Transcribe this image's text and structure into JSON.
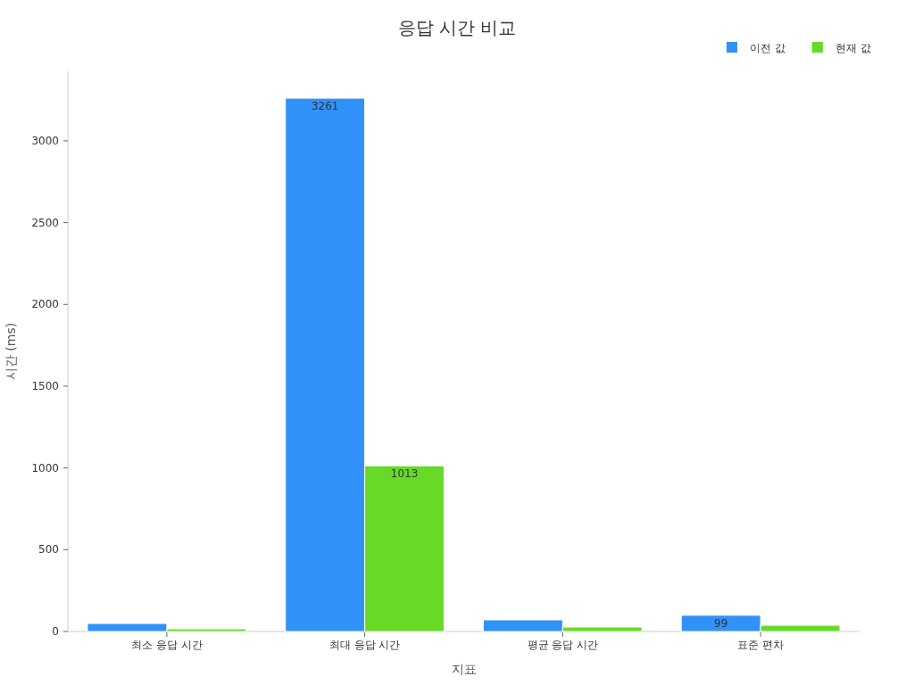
{
  "chart_data": {
    "type": "bar",
    "title": "응답 시간 비교",
    "xlabel": "지표",
    "ylabel": "시간 (ms)",
    "categories": [
      "최소 응답 시간",
      "최대 응답 시간",
      "평균 응답 시간",
      "표준 편차"
    ],
    "series": [
      {
        "name": "이전 값",
        "color": "#3092f9",
        "values": [
          49,
          3261,
          71,
          99
        ],
        "value_labels": [
          null,
          "3261",
          null,
          "99"
        ]
      },
      {
        "name": "현재 값",
        "color": "#66da26",
        "values": [
          16,
          1013,
          27,
          38
        ],
        "value_labels": [
          null,
          "1013",
          null,
          null
        ]
      }
    ],
    "ylim": [
      0,
      3425
    ],
    "yticks": [
      0,
      500,
      1000,
      1500,
      2000,
      2500,
      3000
    ],
    "grid": false,
    "legend": "top right"
  }
}
